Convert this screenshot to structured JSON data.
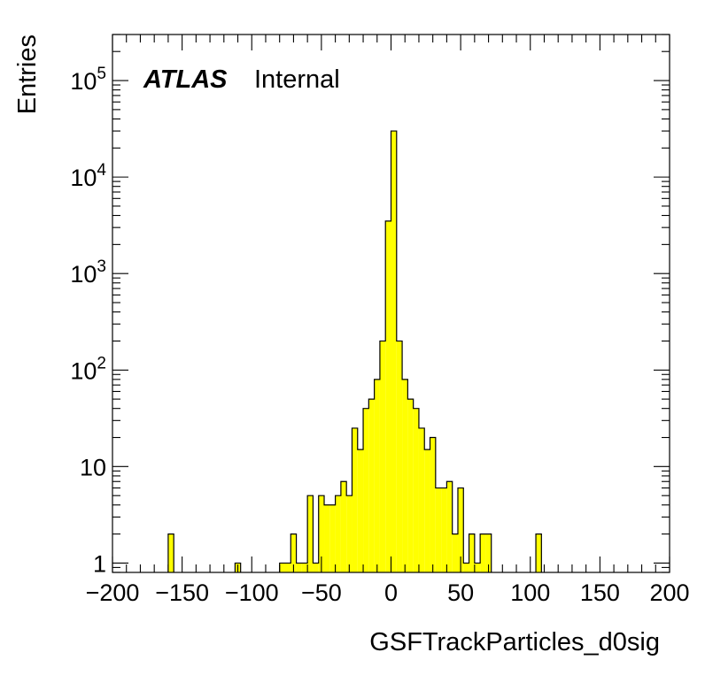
{
  "chart_data": {
    "type": "bar",
    "title": "",
    "xlabel": "GSFTrackParticles_d0sig",
    "ylabel": "Entries",
    "xlim": [
      -200,
      200
    ],
    "ylim": [
      0.8,
      300000
    ],
    "log_y": true,
    "bin_width": 4,
    "x_ticks": [
      "−200",
      "−150",
      "−100",
      "−50",
      "0",
      "50",
      "100",
      "150",
      "200"
    ],
    "y_ticks": [
      {
        "value": 1,
        "label": "1"
      },
      {
        "value": 10,
        "label": "10"
      },
      {
        "value": 100,
        "base": "10",
        "exp": "2"
      },
      {
        "value": 1000,
        "base": "10",
        "exp": "3"
      },
      {
        "value": 10000,
        "base": "10",
        "exp": "4"
      },
      {
        "value": 100000,
        "base": "10",
        "exp": "5"
      }
    ],
    "fill_color": "#ffff00",
    "line_color": "#000000",
    "bins": [
      {
        "x": -160,
        "y": 2
      },
      {
        "x": -112,
        "y": 1
      },
      {
        "x": -80,
        "y": 1
      },
      {
        "x": -76,
        "y": 1
      },
      {
        "x": -72,
        "y": 2
      },
      {
        "x": -68,
        "y": 1
      },
      {
        "x": -64,
        "y": 1
      },
      {
        "x": -60,
        "y": 5
      },
      {
        "x": -56,
        "y": 1
      },
      {
        "x": -52,
        "y": 5
      },
      {
        "x": -48,
        "y": 4
      },
      {
        "x": -44,
        "y": 4
      },
      {
        "x": -40,
        "y": 5
      },
      {
        "x": -36,
        "y": 7
      },
      {
        "x": -32,
        "y": 5
      },
      {
        "x": -28,
        "y": 25
      },
      {
        "x": -24,
        "y": 15
      },
      {
        "x": -20,
        "y": 40
      },
      {
        "x": -16,
        "y": 50
      },
      {
        "x": -12,
        "y": 80
      },
      {
        "x": -8,
        "y": 200
      },
      {
        "x": -4,
        "y": 3500
      },
      {
        "x": 0,
        "y": 30000
      },
      {
        "x": 4,
        "y": 200
      },
      {
        "x": 8,
        "y": 80
      },
      {
        "x": 12,
        "y": 50
      },
      {
        "x": 16,
        "y": 40
      },
      {
        "x": 20,
        "y": 25
      },
      {
        "x": 24,
        "y": 15
      },
      {
        "x": 28,
        "y": 20
      },
      {
        "x": 32,
        "y": 6
      },
      {
        "x": 36,
        "y": 6
      },
      {
        "x": 40,
        "y": 7
      },
      {
        "x": 44,
        "y": 2
      },
      {
        "x": 48,
        "y": 6
      },
      {
        "x": 52,
        "y": 1
      },
      {
        "x": 56,
        "y": 2
      },
      {
        "x": 60,
        "y": 1
      },
      {
        "x": 64,
        "y": 2
      },
      {
        "x": 68,
        "y": 2
      },
      {
        "x": 104,
        "y": 2
      }
    ]
  },
  "labels": {
    "atlas": "ATLAS",
    "internal": "Internal"
  }
}
